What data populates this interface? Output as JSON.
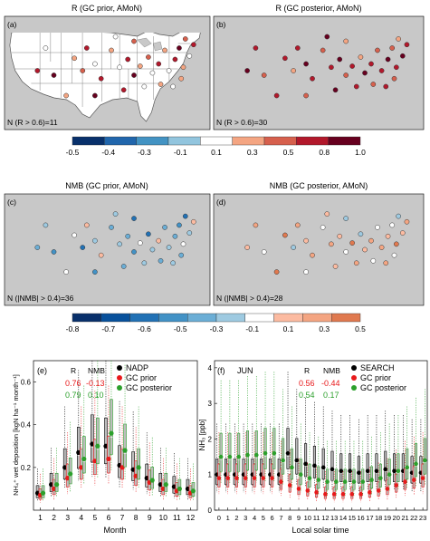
{
  "maps": {
    "row1": {
      "a": {
        "title": "R (GC prior, AMoN)",
        "letter": "(a)",
        "count_label": "N (R > 0.6)=11"
      },
      "b": {
        "title": "R (GC posterior, AMoN)",
        "letter": "(b)",
        "count_label": "N (R > 0.6)=30"
      }
    },
    "row2": {
      "c": {
        "title": "NMB (GC prior, AMoN)",
        "letter": "(c)",
        "count_label": "N (|NMB| > 0.4)=36"
      },
      "d": {
        "title": "NMB (GC posterior, AMoN)",
        "letter": "(d)",
        "count_label": "N (|NMB| > 0.4)=28"
      }
    }
  },
  "colorbar_r": {
    "labels": [
      "-0.5",
      "-0.4",
      "-0.3",
      "-0.1",
      "0.1",
      "0.3",
      "0.5",
      "0.8",
      "1.0"
    ],
    "colors": [
      "#08306b",
      "#2166ac",
      "#4393c3",
      "#92c5de",
      "#ffffff",
      "#f4a582",
      "#d6604d",
      "#b2182b",
      "#67001f"
    ]
  },
  "colorbar_nmb": {
    "labels": [
      "-0.8",
      "-0.7",
      "-0.6",
      "-0.5",
      "-0.3",
      "-0.1",
      "0.1",
      "0.3",
      "0.5"
    ],
    "colors": [
      "#08306b",
      "#08519c",
      "#2171b5",
      "#4292c6",
      "#6baed6",
      "#9ecae1",
      "#ffffff",
      "#fcbba1",
      "#f4a582",
      "#e0794f"
    ]
  },
  "panel_e": {
    "letter": "(e)",
    "ylabel": "NH₄⁺ wet deposition [kgN ha⁻¹ month⁻¹]",
    "xlabel": "Month",
    "stats_header": {
      "r": "R",
      "nmb": "NMB"
    },
    "stats": [
      {
        "r": "0.76",
        "nmb": "-0.13",
        "color": "#e8191b"
      },
      {
        "r": "0.79",
        "nmb": "0.10",
        "color": "#2ca02c"
      }
    ],
    "legend": [
      "NADP",
      "GC prior",
      "GC posterior"
    ],
    "legend_colors": [
      "#000000",
      "#e8191b",
      "#2ca02c"
    ]
  },
  "panel_f": {
    "letter": "(f)",
    "month": "JUN",
    "ylabel": "NH₃ [ppb]",
    "xlabel": "Local solar time",
    "stats_header": {
      "r": "R",
      "nmb": "NMB"
    },
    "stats": [
      {
        "r": "0.56",
        "nmb": "-0.44",
        "color": "#e8191b"
      },
      {
        "r": "0.54",
        "nmb": "0.17",
        "color": "#2ca02c"
      }
    ],
    "legend": [
      "SEARCH",
      "GC prior",
      "GC posterior"
    ],
    "legend_colors": [
      "#000000",
      "#e8191b",
      "#2ca02c"
    ]
  },
  "chart_data": [
    {
      "type": "scatter",
      "categories": [
        "1",
        "2",
        "3",
        "4",
        "5",
        "6",
        "7",
        "8",
        "9",
        "10",
        "11",
        "12"
      ],
      "series": [
        {
          "name": "NADP",
          "values": [
            0.08,
            0.12,
            0.2,
            0.27,
            0.31,
            0.3,
            0.21,
            0.19,
            0.15,
            0.12,
            0.11,
            0.1
          ]
        },
        {
          "name": "GC prior",
          "values": [
            0.07,
            0.1,
            0.15,
            0.2,
            0.23,
            0.24,
            0.2,
            0.16,
            0.13,
            0.1,
            0.09,
            0.08
          ]
        },
        {
          "name": "GC posterior",
          "values": [
            0.08,
            0.12,
            0.17,
            0.24,
            0.3,
            0.36,
            0.28,
            0.2,
            0.14,
            0.12,
            0.1,
            0.09
          ]
        }
      ],
      "xlabel": "Month",
      "ylabel": "NH₄⁺ wet deposition [kgN ha⁻¹ month⁻¹]",
      "ylim": [
        0,
        0.7
      ]
    },
    {
      "type": "scatter",
      "categories": [
        "0",
        "1",
        "2",
        "3",
        "4",
        "5",
        "6",
        "7",
        "8",
        "9",
        "10",
        "11",
        "12",
        "13",
        "14",
        "15",
        "16",
        "17",
        "18",
        "19",
        "20",
        "21",
        "22",
        "23"
      ],
      "series": [
        {
          "name": "SEARCH",
          "values": [
            1.0,
            1.0,
            1.0,
            1.0,
            1.0,
            1.0,
            1.0,
            1.0,
            1.6,
            1.4,
            1.3,
            1.25,
            1.2,
            1.15,
            1.1,
            1.1,
            1.05,
            1.1,
            1.1,
            1.15,
            1.1,
            1.1,
            1.05,
            1.05
          ]
        },
        {
          "name": "GC prior",
          "values": [
            0.9,
            0.9,
            0.9,
            0.9,
            0.9,
            0.9,
            0.9,
            0.8,
            0.7,
            0.6,
            0.55,
            0.5,
            0.45,
            0.45,
            0.45,
            0.45,
            0.45,
            0.5,
            0.55,
            0.6,
            0.7,
            0.8,
            0.85,
            0.9
          ]
        },
        {
          "name": "GC posterior",
          "values": [
            1.5,
            1.5,
            1.5,
            1.55,
            1.55,
            1.6,
            1.6,
            1.4,
            1.2,
            1.0,
            0.9,
            0.85,
            0.8,
            0.8,
            0.8,
            0.8,
            0.8,
            0.85,
            0.9,
            1.0,
            1.1,
            1.2,
            1.3,
            1.4
          ]
        }
      ],
      "xlabel": "Local solar time",
      "ylabel": "NH₃ [ppb]",
      "ylim": [
        0,
        4.2
      ]
    }
  ]
}
